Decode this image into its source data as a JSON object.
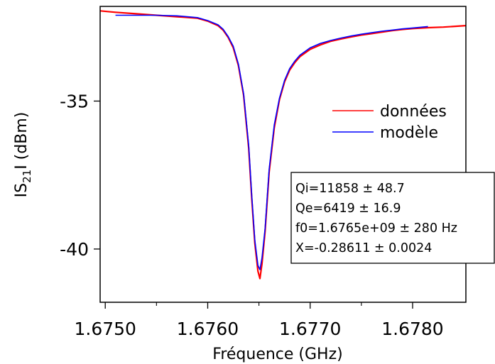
{
  "chart_data": {
    "type": "line",
    "xlabel": "Fréquence (GHz)",
    "ylabel_prefix": "IS",
    "ylabel_sub": "21",
    "ylabel_suffix": "I (dBm)",
    "xlim": [
      1.67495,
      1.67852
    ],
    "ylim": [
      -41.8,
      -31.8
    ],
    "x_ticks": [
      1.675,
      1.676,
      1.677,
      1.678
    ],
    "x_tick_labels": [
      "1.6750",
      "1.6760",
      "1.6770",
      "1.6780"
    ],
    "x_minor_ticks": [
      1.6755,
      1.6765,
      1.6775
    ],
    "y_ticks": [
      -35,
      -40
    ],
    "y_tick_labels": [
      "-35",
      "-40"
    ],
    "grid": false,
    "legend_position": "right",
    "series": [
      {
        "name": "données",
        "color": "#ff0000",
        "x": [
          1.67495,
          1.6751,
          1.6753,
          1.6755,
          1.6757,
          1.6759,
          1.676,
          1.6761,
          1.67615,
          1.6762,
          1.67625,
          1.6763,
          1.67635,
          1.6764,
          1.67643,
          1.67646,
          1.67649,
          1.67651,
          1.67653,
          1.67656,
          1.6766,
          1.67665,
          1.6767,
          1.67675,
          1.6768,
          1.67685,
          1.6769,
          1.677,
          1.6771,
          1.6772,
          1.6773,
          1.6774,
          1.6775,
          1.6776,
          1.6777,
          1.6778,
          1.6779,
          1.678,
          1.67815,
          1.6783,
          1.67852
        ],
        "y": [
          -31.95,
          -32.0,
          -32.05,
          -32.1,
          -32.15,
          -32.2,
          -32.3,
          -32.45,
          -32.6,
          -32.85,
          -33.2,
          -33.8,
          -34.8,
          -36.6,
          -38.3,
          -39.8,
          -40.75,
          -41.0,
          -40.5,
          -39.4,
          -37.4,
          -35.9,
          -34.95,
          -34.35,
          -33.95,
          -33.7,
          -33.5,
          -33.25,
          -33.1,
          -32.98,
          -32.9,
          -32.83,
          -32.77,
          -32.72,
          -32.67,
          -32.62,
          -32.58,
          -32.55,
          -32.52,
          -32.5,
          -32.45
        ]
      },
      {
        "name": "modèle",
        "color": "#0000ff",
        "x": [
          1.6751,
          1.6753,
          1.6755,
          1.6757,
          1.6759,
          1.676,
          1.6761,
          1.67615,
          1.6762,
          1.67625,
          1.6763,
          1.67635,
          1.6764,
          1.67643,
          1.67646,
          1.67649,
          1.67651,
          1.67653,
          1.67656,
          1.6766,
          1.67665,
          1.6767,
          1.67675,
          1.6768,
          1.67685,
          1.6769,
          1.677,
          1.6771,
          1.6772,
          1.6773,
          1.6774,
          1.6775,
          1.6776,
          1.6777,
          1.6778,
          1.6779,
          1.678,
          1.67815
        ],
        "y": [
          -32.1,
          -32.1,
          -32.1,
          -32.12,
          -32.18,
          -32.28,
          -32.42,
          -32.57,
          -32.82,
          -33.15,
          -33.75,
          -34.75,
          -36.5,
          -38.2,
          -39.7,
          -40.55,
          -40.7,
          -40.3,
          -39.3,
          -37.3,
          -35.8,
          -34.9,
          -34.3,
          -33.9,
          -33.65,
          -33.45,
          -33.2,
          -33.05,
          -32.95,
          -32.87,
          -32.8,
          -32.74,
          -32.69,
          -32.64,
          -32.6,
          -32.56,
          -32.53,
          -32.48
        ]
      }
    ],
    "fit_box": [
      "Qi=11858 ± 48.7",
      "Qe=6419 ± 16.9",
      "f0=1.6765e+09 ± 280 Hz",
      "X=-0.28611 ± 0.0024"
    ]
  }
}
